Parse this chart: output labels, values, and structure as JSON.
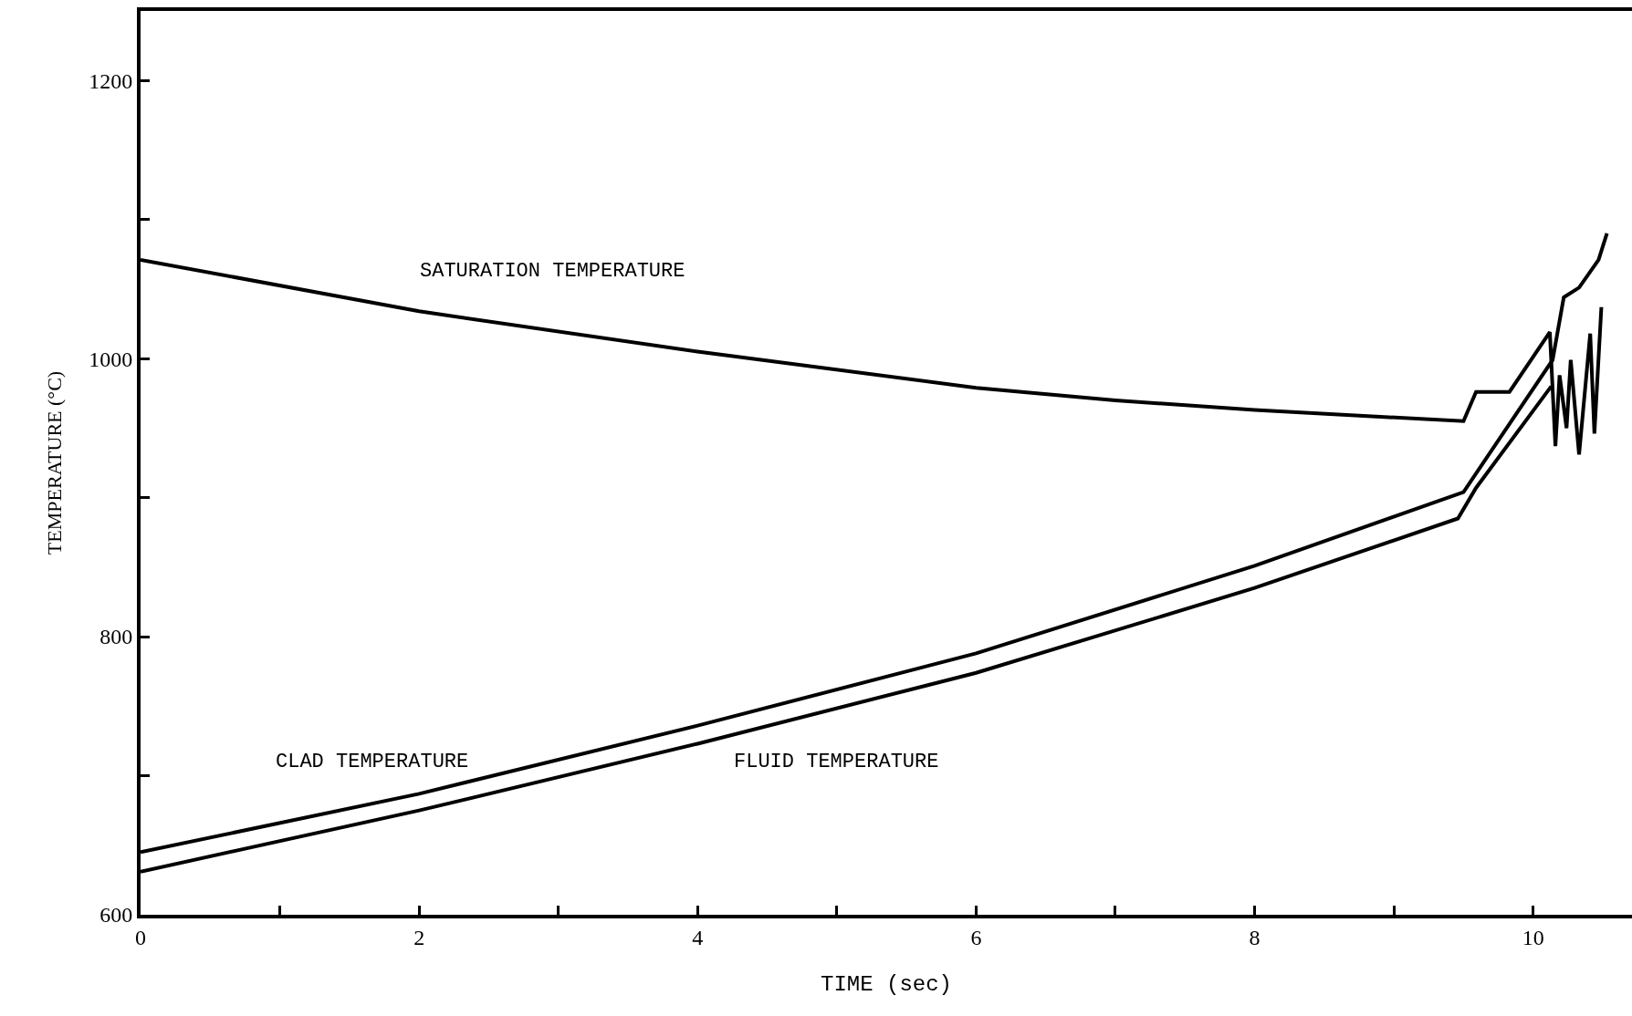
{
  "chart_data": {
    "type": "line",
    "xlabel": "TIME (sec)",
    "ylabel": "TEMPERATURE (°C)",
    "xlim": [
      0,
      10.71
    ],
    "ylim": [
      600,
      1250
    ],
    "xticks": [
      0,
      {
        "value": 1,
        "label": null
      },
      2,
      {
        "value": 3,
        "label": null
      },
      4,
      {
        "value": 5,
        "label": null
      },
      6,
      {
        "value": 7,
        "label": null
      },
      8,
      {
        "value": 9,
        "label": null
      },
      10
    ],
    "yticks": [
      600,
      {
        "value": 700,
        "label": null
      },
      800,
      {
        "value": 900,
        "label": null
      },
      1000,
      {
        "value": 1100,
        "label": null
      },
      1200
    ],
    "legend": false,
    "marker": "none",
    "line_style": "solid",
    "series": [
      {
        "name": "SATURATION TEMPERATURE",
        "color": "#000000",
        "x": [
          0,
          2,
          4,
          6,
          7,
          8,
          9.5,
          9.59,
          9.83,
          10.12,
          10.16,
          10.19,
          10.24,
          10.27,
          10.33,
          10.41,
          10.44,
          10.49
        ],
        "values": [
          1071,
          1034,
          1005,
          979,
          970,
          963,
          955,
          976,
          976,
          1019,
          937,
          988,
          950,
          999,
          931,
          1018,
          946,
          1037
        ]
      },
      {
        "name": "CLAD TEMPERATURE",
        "color": "#000000",
        "x": [
          0,
          2,
          4,
          6,
          8,
          9.5,
          10.14,
          10.22,
          10.33,
          10.47,
          10.53
        ],
        "values": [
          645,
          687,
          736,
          788,
          851,
          904,
          999,
          1044,
          1051,
          1071,
          1090
        ]
      },
      {
        "name": "FLUID TEMPERATURE",
        "color": "#000000",
        "x": [
          0,
          2,
          4,
          6,
          8,
          9.46,
          9.59,
          10.13
        ],
        "values": [
          631,
          675,
          723,
          774,
          835,
          885,
          907,
          980
        ]
      }
    ]
  }
}
